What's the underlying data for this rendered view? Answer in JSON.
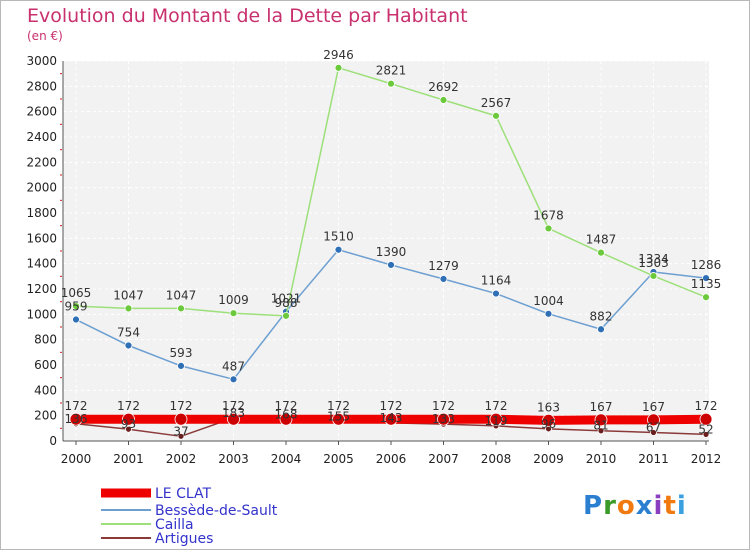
{
  "chart_data": {
    "type": "line",
    "title": "Evolution du Montant de la Dette par Habitant",
    "subtitle": "(en €)",
    "x": [
      "2000",
      "2001",
      "2002",
      "2003",
      "2004",
      "2005",
      "2006",
      "2007",
      "2008",
      "2009",
      "2010",
      "2011",
      "2012"
    ],
    "ylim": [
      0,
      3000
    ],
    "yticks": [
      0,
      200,
      400,
      600,
      800,
      1000,
      1200,
      1400,
      1600,
      1800,
      2000,
      2200,
      2400,
      2600,
      2800,
      3000
    ],
    "grid": true,
    "legend_position": "bottom-left",
    "series": [
      {
        "name": "LE CLAT",
        "color": "#ee0000",
        "marker": "#cc0000",
        "values": [
          172,
          172,
          172,
          172,
          172,
          172,
          172,
          172,
          172,
          163,
          167,
          167,
          172
        ]
      },
      {
        "name": "Bessède-de-Sault",
        "color": "#6d9fd1",
        "marker": "#2f6fb5",
        "values": [
          959,
          754,
          593,
          487,
          1021,
          1510,
          1390,
          1279,
          1164,
          1004,
          882,
          1334,
          1286
        ]
      },
      {
        "name": "Cailla",
        "color": "#9de07a",
        "marker": "#6cc93c",
        "values": [
          1065,
          1047,
          1047,
          1009,
          988,
          2946,
          2821,
          2692,
          2567,
          1678,
          1487,
          1303,
          1135
        ]
      },
      {
        "name": "Artigues",
        "color": "#8b3a3a",
        "marker": "#6b1e1e",
        "values": [
          136,
          93,
          37,
          183,
          168,
          155,
          143,
          133,
          119,
          96,
          81,
          67,
          52
        ]
      }
    ]
  },
  "logo": {
    "text": "Proxiti",
    "colors": [
      "#2a7fd0",
      "#3a9a2a",
      "#f07a10",
      "#2a7fd0",
      "#8a3fc0",
      "#f07a10",
      "#3aa0e0"
    ]
  }
}
